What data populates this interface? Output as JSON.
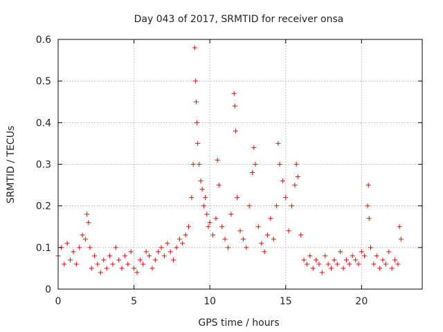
{
  "chart_data": {
    "type": "scatter",
    "title": "Day 043 of 2017, SRMTID for receiver onsa",
    "xlabel": "GPS time / hours",
    "ylabel": "SRMTID / TECUs",
    "xlim": [
      0,
      24
    ],
    "ylim": [
      0,
      0.6
    ],
    "xticks": [
      0,
      5,
      10,
      15,
      20
    ],
    "xtick_labels": [
      "0",
      "5",
      "10",
      "15",
      "20"
    ],
    "yticks": [
      0,
      0.1,
      0.2,
      0.3,
      0.4,
      0.5,
      0.6
    ],
    "ytick_labels": [
      "0",
      "0.1",
      "0.2",
      "0.3",
      "0.4",
      "0.5",
      "0.6"
    ],
    "grid": true,
    "marker": "plus",
    "series": [
      {
        "name": "SRMTID",
        "color": "#ff0000",
        "x": [
          0.0,
          0.2,
          0.4,
          0.6,
          0.8,
          1.0,
          1.2,
          1.4,
          1.6,
          1.8,
          1.9,
          2.0,
          2.1,
          2.2,
          2.4,
          2.6,
          2.8,
          3.0,
          3.2,
          3.4,
          3.6,
          3.8,
          4.0,
          4.2,
          4.4,
          4.6,
          4.8,
          5.0,
          5.2,
          5.4,
          5.6,
          5.8,
          6.0,
          6.2,
          6.4,
          6.6,
          6.8,
          7.0,
          7.2,
          7.4,
          7.6,
          7.8,
          8.0,
          8.2,
          8.4,
          8.6,
          8.8,
          8.9,
          9.0,
          9.05,
          9.1,
          9.15,
          9.2,
          9.3,
          9.4,
          9.5,
          9.6,
          9.7,
          9.8,
          9.9,
          10.0,
          10.2,
          10.4,
          10.5,
          10.6,
          10.8,
          11.0,
          11.2,
          11.4,
          11.6,
          11.65,
          11.7,
          11.8,
          12.0,
          12.2,
          12.4,
          12.6,
          12.8,
          12.9,
          13.0,
          13.2,
          13.4,
          13.6,
          13.8,
          14.0,
          14.2,
          14.4,
          14.5,
          14.6,
          14.8,
          15.0,
          15.2,
          15.4,
          15.6,
          15.7,
          15.8,
          16.0,
          16.2,
          16.4,
          16.6,
          16.8,
          17.0,
          17.2,
          17.4,
          17.6,
          17.8,
          18.0,
          18.2,
          18.4,
          18.6,
          18.8,
          19.0,
          19.2,
          19.4,
          19.6,
          19.8,
          20.0,
          20.2,
          20.4,
          20.45,
          20.5,
          20.6,
          20.8,
          21.0,
          21.2,
          21.4,
          21.6,
          21.8,
          22.0,
          22.2,
          22.4,
          22.5,
          22.6
        ],
        "y": [
          0.08,
          0.1,
          0.06,
          0.11,
          0.07,
          0.09,
          0.06,
          0.1,
          0.13,
          0.12,
          0.18,
          0.16,
          0.1,
          0.05,
          0.08,
          0.06,
          0.04,
          0.07,
          0.05,
          0.08,
          0.06,
          0.1,
          0.07,
          0.05,
          0.08,
          0.06,
          0.09,
          0.05,
          0.04,
          0.07,
          0.06,
          0.09,
          0.08,
          0.05,
          0.07,
          0.09,
          0.1,
          0.08,
          0.11,
          0.09,
          0.07,
          0.1,
          0.12,
          0.11,
          0.13,
          0.15,
          0.22,
          0.3,
          0.58,
          0.5,
          0.45,
          0.4,
          0.35,
          0.3,
          0.26,
          0.24,
          0.2,
          0.22,
          0.18,
          0.15,
          0.16,
          0.13,
          0.17,
          0.31,
          0.25,
          0.15,
          0.12,
          0.1,
          0.18,
          0.47,
          0.44,
          0.38,
          0.22,
          0.14,
          0.12,
          0.1,
          0.2,
          0.28,
          0.34,
          0.3,
          0.15,
          0.11,
          0.09,
          0.13,
          0.17,
          0.12,
          0.2,
          0.35,
          0.3,
          0.26,
          0.22,
          0.14,
          0.2,
          0.25,
          0.3,
          0.27,
          0.13,
          0.07,
          0.06,
          0.08,
          0.05,
          0.07,
          0.06,
          0.04,
          0.08,
          0.06,
          0.05,
          0.07,
          0.06,
          0.09,
          0.05,
          0.07,
          0.06,
          0.08,
          0.07,
          0.06,
          0.09,
          0.08,
          0.2,
          0.25,
          0.17,
          0.1,
          0.06,
          0.08,
          0.05,
          0.07,
          0.06,
          0.09,
          0.05,
          0.07,
          0.06,
          0.15,
          0.12
        ]
      }
    ]
  }
}
